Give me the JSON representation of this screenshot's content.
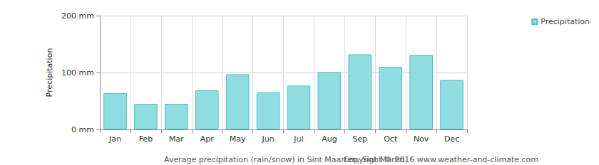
{
  "chart_data": {
    "type": "bar",
    "title": "Average precipitation (rain/snow) in Sint Maarten, Sint Martin",
    "annotations": [
      "Copyright © 2016 www.weather-and-climate.com"
    ],
    "ylabel": "Precipitation",
    "categories": [
      "Jan",
      "Feb",
      "Mar",
      "Apr",
      "May",
      "Jun",
      "Jul",
      "Aug",
      "Sep",
      "Oct",
      "Nov",
      "Dec"
    ],
    "series": [
      {
        "name": "Precipitation",
        "color": "#8fdde1",
        "values": [
          64,
          45,
          45,
          69,
          97,
          65,
          77,
          101,
          132,
          110,
          131,
          87
        ]
      }
    ],
    "ylim": [
      0,
      200
    ],
    "yticks": [
      {
        "value": 0,
        "label": "0 mm"
      },
      {
        "value": 100,
        "label": "100 mm"
      },
      {
        "value": 200,
        "label": "200 mm"
      }
    ],
    "grid": true,
    "legend": "top-right"
  }
}
